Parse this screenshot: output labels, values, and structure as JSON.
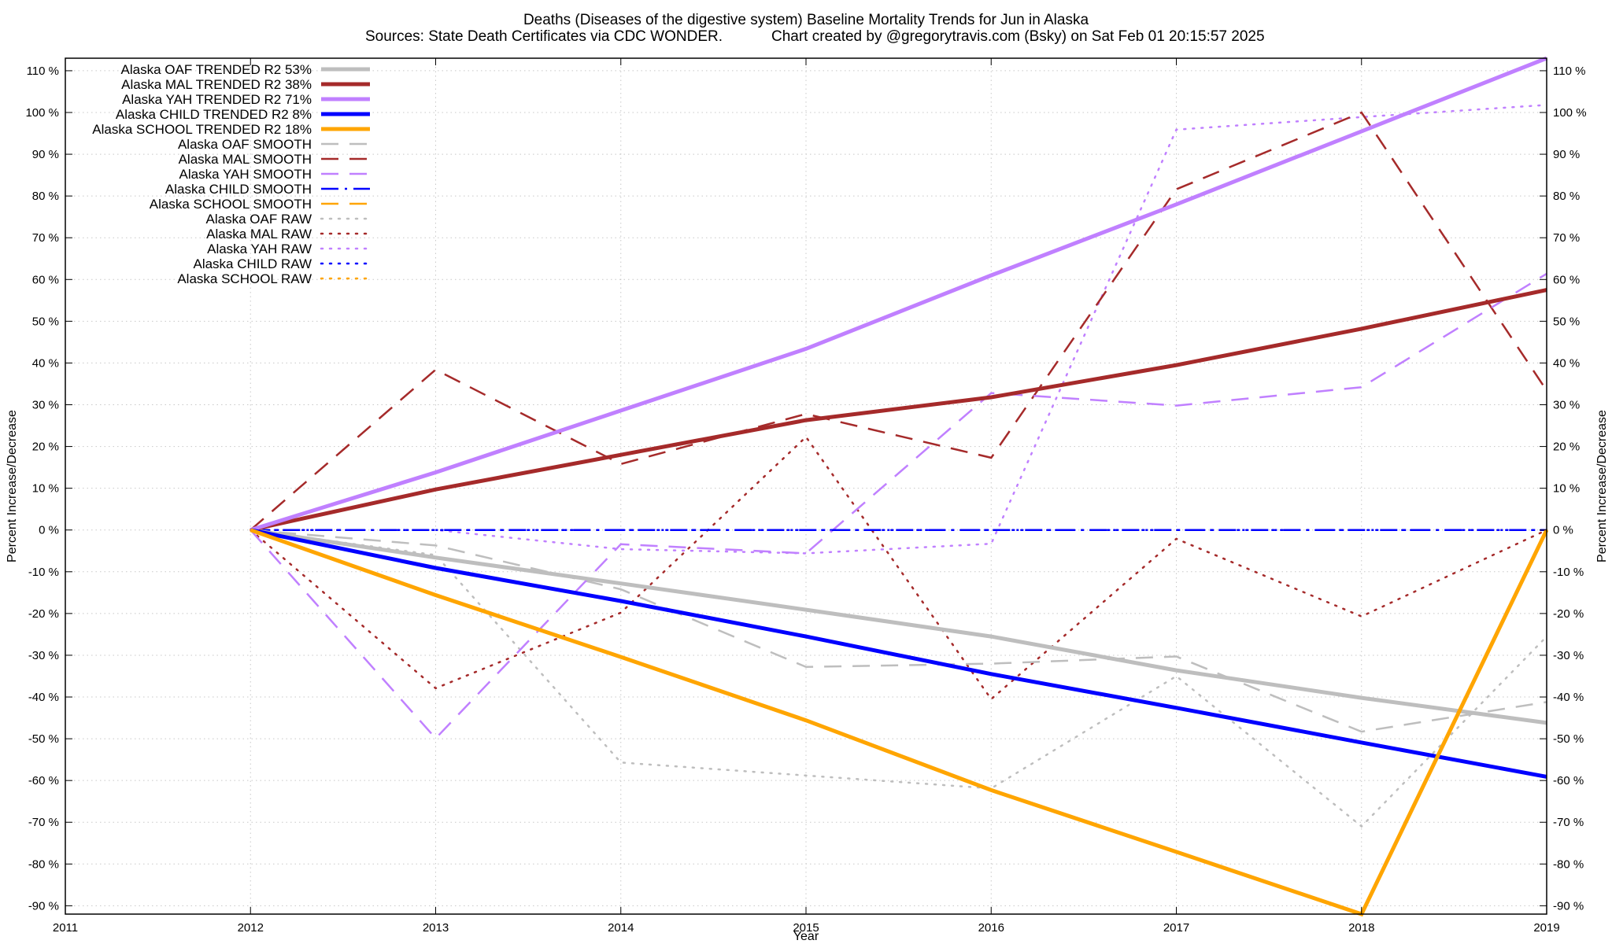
{
  "chart_data": {
    "type": "line",
    "title": "Deaths (Diseases of the digestive system)  Baseline Mortality Trends for Jun in Alaska",
    "subtitle_left": "Sources: State Death Certificates via CDC WONDER.",
    "subtitle_right": "Chart created by @gregorytravis.com (Bsky) on Sat Feb 01 20:15:57 2025",
    "xlabel": "Year",
    "ylabel": "Percent Increase/Decrease",
    "ylabel_right": "Percent Increase/Decrease",
    "xlim": [
      2011,
      2019
    ],
    "ylim": [
      -92,
      113
    ],
    "x_ticks": [
      2011,
      2012,
      2013,
      2014,
      2015,
      2016,
      2017,
      2018,
      2019
    ],
    "x_tick_labels": [
      "2011",
      "2012",
      "2013",
      "2014",
      "2015",
      "2016",
      "2017",
      "2018",
      "2019"
    ],
    "y_ticks": [
      -90,
      -80,
      -70,
      -60,
      -50,
      -40,
      -30,
      -20,
      -10,
      0,
      10,
      20,
      30,
      40,
      50,
      60,
      70,
      80,
      90,
      100,
      110
    ],
    "y_tick_labels": [
      "-90 %",
      "-80 %",
      "-70 %",
      "-60 %",
      "-50 %",
      "-40 %",
      "-30 %",
      "-20 %",
      "-10 %",
      "0 %",
      "10 %",
      "20 %",
      "30 %",
      "40 %",
      "50 %",
      "60 %",
      "70 %",
      "80 %",
      "90 %",
      "100 %",
      "110 %"
    ],
    "grid": true,
    "legend_position": "top-left",
    "x": [
      2012,
      2013,
      2014,
      2015,
      2016,
      2017,
      2018,
      2019
    ],
    "series": [
      {
        "name": "Alaska OAF TRENDED R2  53%",
        "style": "trended",
        "color": "#bebebe",
        "values": [
          0,
          -6.6,
          -12.8,
          -19.1,
          -25.5,
          -33.6,
          -40.2,
          -46.2
        ]
      },
      {
        "name": "Alaska MAL TRENDED R2  38%",
        "style": "trended",
        "color": "#a52a2a",
        "values": [
          0,
          9.7,
          18.0,
          26.3,
          31.8,
          39.5,
          48.2,
          57.5
        ]
      },
      {
        "name": "Alaska YAH TRENDED R2  71%",
        "style": "trended",
        "color": "#c080ff",
        "values": [
          0,
          13.8,
          28.6,
          43.4,
          61.0,
          78.0,
          95.5,
          113.0
        ]
      },
      {
        "name": "Alaska CHILD TRENDED R2  8%",
        "style": "trended",
        "color": "#0000ff",
        "values": [
          0,
          -9.1,
          -17.0,
          -25.5,
          -34.5,
          -42.6,
          -50.9,
          -59.1
        ]
      },
      {
        "name": "Alaska SCHOOL TRENDED R2  18%",
        "style": "trended",
        "color": "#ffa500",
        "values": [
          0,
          -15.6,
          -30.4,
          -45.6,
          -62.3,
          -77.1,
          -92.0,
          0
        ]
      },
      {
        "name": "Alaska OAF SMOOTH",
        "style": "smooth",
        "color": "#bebebe",
        "values": [
          0,
          -3.7,
          -14.2,
          -32.8,
          -32.0,
          -30.3,
          -48.3,
          -41.2
        ]
      },
      {
        "name": "Alaska MAL SMOOTH",
        "style": "smooth",
        "color": "#a52a2a",
        "values": [
          0,
          38.4,
          15.8,
          27.8,
          17.3,
          81.6,
          100.0,
          33.4
        ]
      },
      {
        "name": "Alaska YAH SMOOTH",
        "style": "smooth",
        "color": "#c080ff",
        "values": [
          0,
          -49.9,
          -3.4,
          -5.6,
          32.8,
          29.8,
          34.2,
          61.4
        ]
      },
      {
        "name": "Alaska CHILD SMOOTH",
        "style": "smooth",
        "color": "#0000ff",
        "values": [
          0,
          0,
          0,
          0,
          0,
          0,
          0,
          0
        ]
      },
      {
        "name": "Alaska SCHOOL SMOOTH",
        "style": "smooth",
        "color": "#ffa500",
        "values": [
          0,
          -15.6,
          -30.4,
          -45.6,
          -62.3,
          -77.1,
          -92.0,
          0
        ]
      },
      {
        "name": "Alaska OAF RAW",
        "style": "raw",
        "color": "#bebebe",
        "values": [
          0,
          -6.0,
          -55.7,
          -58.8,
          -61.9,
          -35.0,
          -71.0,
          -25.5
        ]
      },
      {
        "name": "Alaska MAL RAW",
        "style": "raw",
        "color": "#a52a2a",
        "values": [
          0,
          -37.9,
          -19.8,
          22.3,
          -40.5,
          -2.1,
          -20.7,
          0
        ]
      },
      {
        "name": "Alaska YAH RAW",
        "style": "raw",
        "color": "#c080ff",
        "values": [
          0,
          0,
          -4.6,
          -5.6,
          -3.3,
          95.9,
          98.9,
          101.8
        ]
      },
      {
        "name": "Alaska CHILD RAW",
        "style": "raw",
        "color": "#0000ff",
        "values": [
          0,
          0,
          0,
          0,
          0,
          0,
          0,
          0
        ]
      },
      {
        "name": "Alaska SCHOOL RAW",
        "style": "raw",
        "color": "#ffa500",
        "values": [
          0,
          -15.6,
          -30.4,
          -45.6,
          -62.3,
          -77.1,
          -92.0,
          0
        ]
      }
    ]
  }
}
